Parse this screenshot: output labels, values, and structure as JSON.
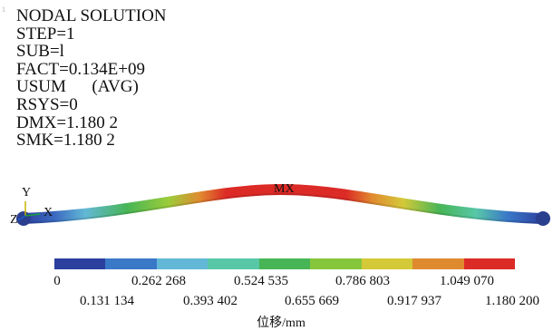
{
  "index_mark": "1",
  "info_lines": [
    "NODAL SOLUTION",
    "STEP=1",
    "SUB=l",
    "FACT=0.134E+09",
    "USUM      (AVG)",
    "RSYS=0",
    "DMX=1.180 2",
    "SMK=1.180 2"
  ],
  "triad": {
    "y": "Y",
    "x": "X",
    "z": "Z"
  },
  "max_marker": "MX",
  "legend": {
    "colors": [
      "#2b3f9e",
      "#3a78c8",
      "#62b8d6",
      "#58c7a8",
      "#47b556",
      "#86c63c",
      "#d4c938",
      "#e08a30",
      "#dc2a26"
    ],
    "top_labels": [
      "0",
      "0.262 268",
      "0.524 535",
      "0.786 803",
      "1.049 070"
    ],
    "bottom_labels": [
      "0.131 134",
      "0.393 402",
      "0.655 669",
      "0.917 937",
      "1.180 200"
    ],
    "unit": "位移/mm"
  }
}
